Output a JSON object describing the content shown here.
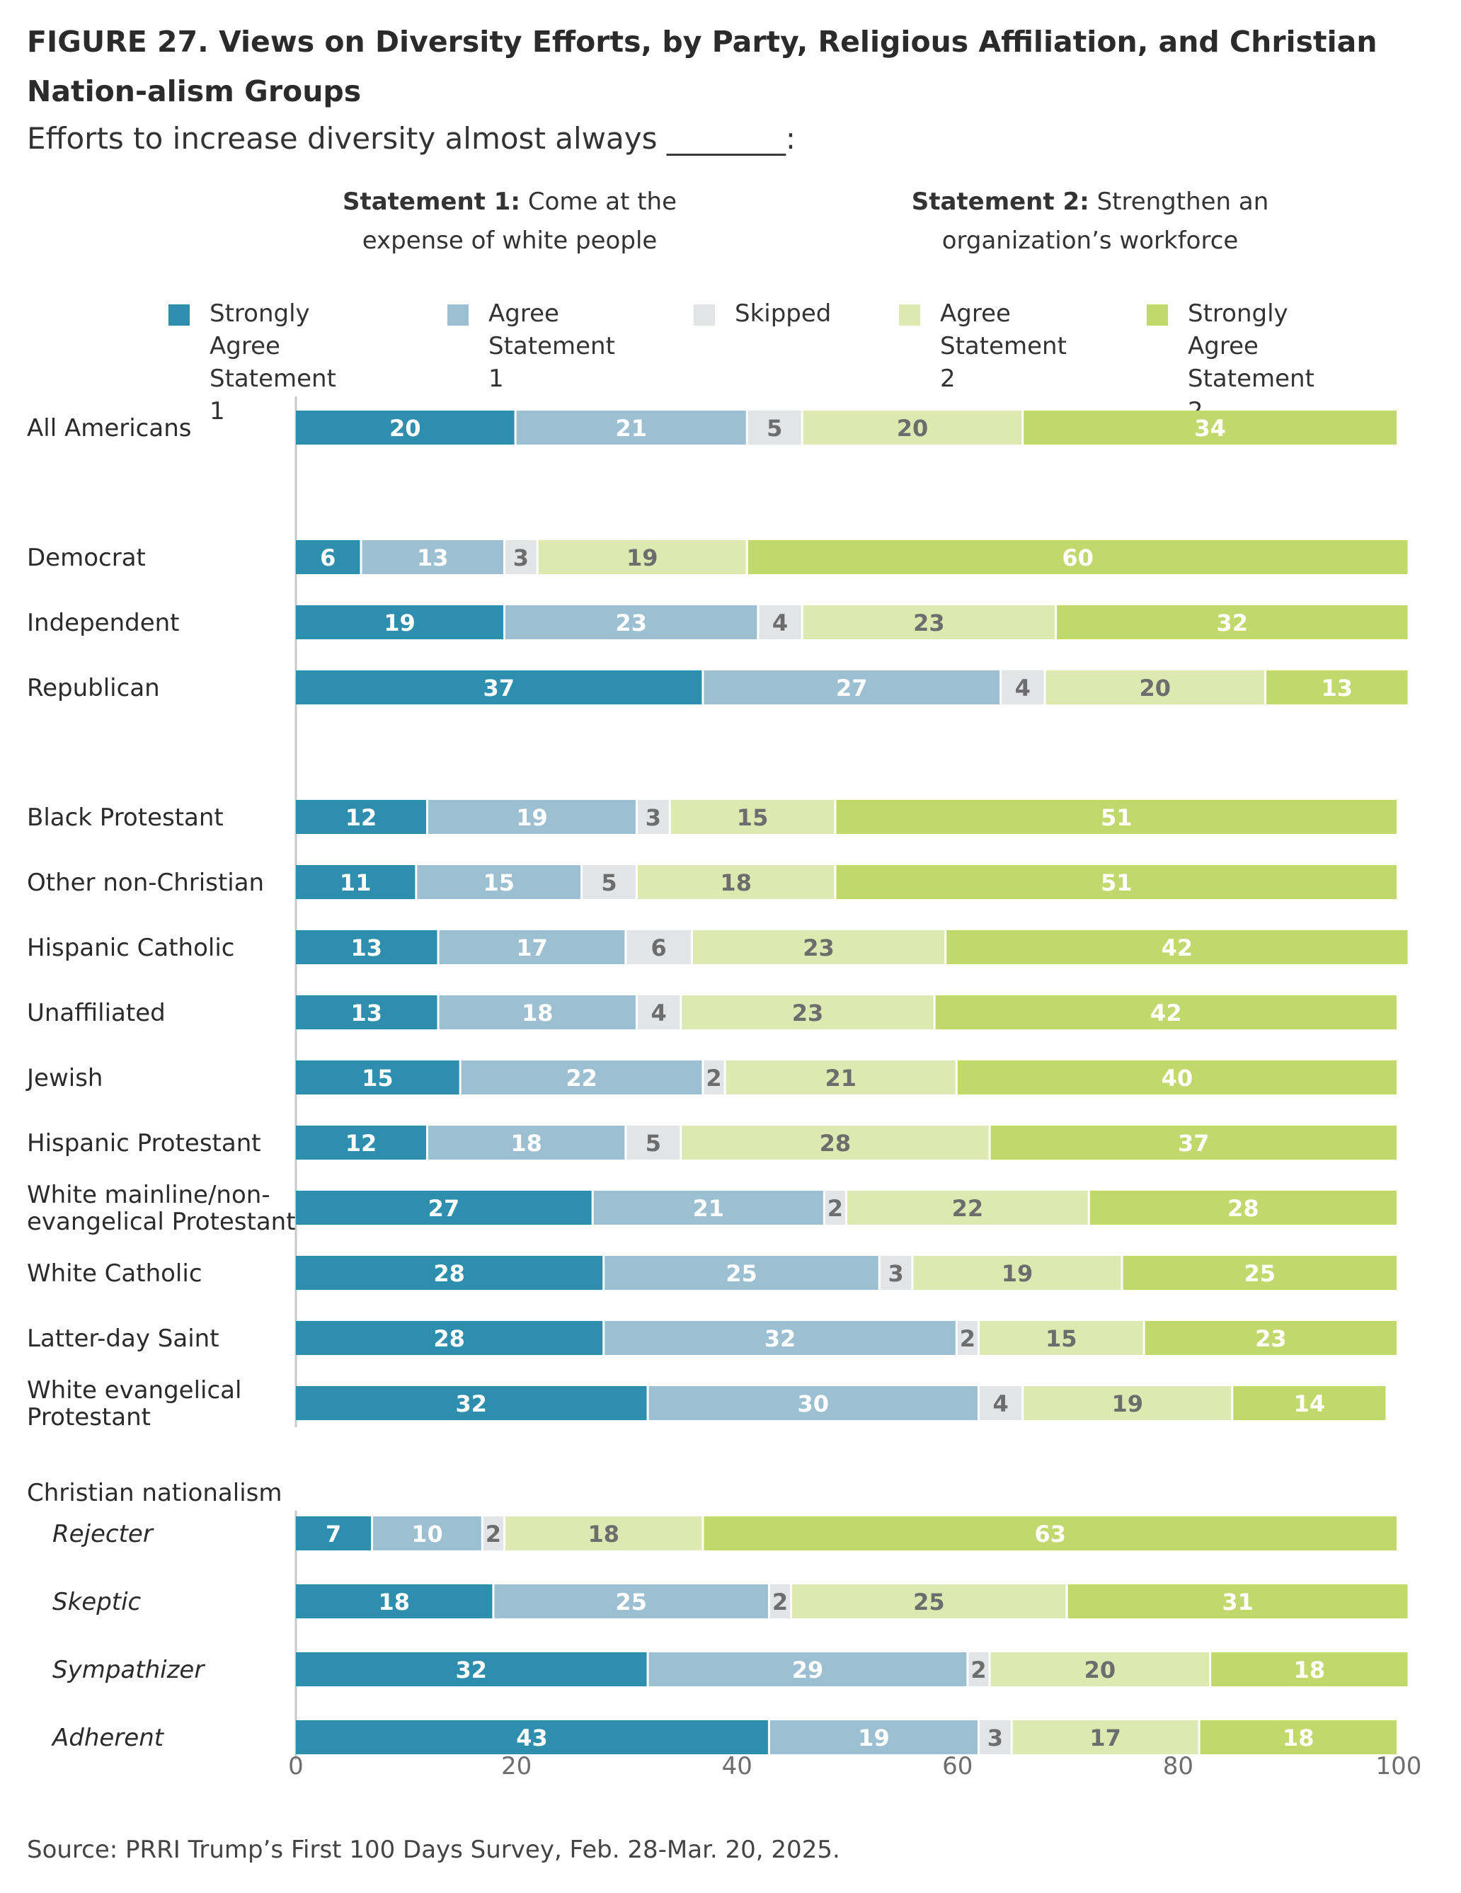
{
  "title": "FIGURE 27.  Views on Diversity Efforts, by Party, Religious Affiliation, and Christian Nation-alism Groups",
  "subtitle": "Efforts to increase diversity almost always ________:",
  "statement1": {
    "bold": "Statement 1:",
    "text": "Come at the expense of white people"
  },
  "statement2": {
    "bold": "Statement 2:",
    "text": "Strengthen an organization’s workforce"
  },
  "legend": [
    {
      "label": "Strongly Agree\nStatement 1",
      "color": "#2e8eae"
    },
    {
      "label": "Agree\nStatement 1",
      "color": "#9dbfd2"
    },
    {
      "label": "Skipped",
      "color": "#e3e4e6"
    },
    {
      "label": "Agree\nStatement 2",
      "color": "#dde9b0"
    },
    {
      "label": "Strongly Agree\nStatement 2",
      "color": "#c1d96c"
    }
  ],
  "source": "Source: PRRI Trump’s First 100 Days Survey, Feb. 28-Mar. 20, 2025.",
  "chart_data": {
    "type": "bar",
    "orientation": "horizontal",
    "stacked": true,
    "xlim": [
      0,
      100
    ],
    "xticks": [
      0,
      20,
      40,
      60,
      80,
      100
    ],
    "grid": false,
    "legend_position": "top",
    "series": [
      {
        "name": "Strongly Agree Statement 1",
        "color": "#2e8eae",
        "label_color": "#ffffff"
      },
      {
        "name": "Agree Statement 1",
        "color": "#9dbfd2",
        "label_color": "#ffffff"
      },
      {
        "name": "Skipped",
        "color": "#e3e4e6",
        "label_color": "#6d6d6d"
      },
      {
        "name": "Agree Statement 2",
        "color": "#dde9b0",
        "label_color": "#6d6d6d"
      },
      {
        "name": "Strongly Agree Statement 2",
        "color": "#c1d96c",
        "label_color": "#ffffff"
      }
    ],
    "group_header": "Christian nationalism",
    "rows": [
      {
        "label": "All Americans",
        "values": [
          20,
          21,
          5,
          20,
          34
        ]
      },
      {
        "label": "Democrat",
        "values": [
          6,
          13,
          3,
          19,
          60
        ]
      },
      {
        "label": "Independent",
        "values": [
          19,
          23,
          4,
          23,
          32
        ]
      },
      {
        "label": "Republican",
        "values": [
          37,
          27,
          4,
          20,
          13
        ]
      },
      {
        "label": "Black Protestant",
        "values": [
          12,
          19,
          3,
          15,
          51
        ]
      },
      {
        "label": "Other non-Christian",
        "values": [
          11,
          15,
          5,
          18,
          51
        ]
      },
      {
        "label": "Hispanic Catholic",
        "values": [
          13,
          17,
          6,
          23,
          42
        ]
      },
      {
        "label": "Unaffiliated",
        "values": [
          13,
          18,
          4,
          23,
          42
        ]
      },
      {
        "label": "Jewish",
        "values": [
          15,
          22,
          2,
          21,
          40
        ]
      },
      {
        "label": "Hispanic Protestant",
        "values": [
          12,
          18,
          5,
          28,
          37
        ]
      },
      {
        "label": "White mainline/non-\nevangelical Protestant",
        "values": [
          27,
          21,
          2,
          22,
          28
        ]
      },
      {
        "label": "White Catholic",
        "values": [
          28,
          25,
          3,
          19,
          25
        ]
      },
      {
        "label": "Latter-day Saint",
        "values": [
          28,
          32,
          2,
          15,
          23
        ]
      },
      {
        "label": "White evangelical\nProtestant",
        "values": [
          32,
          30,
          4,
          19,
          14
        ]
      },
      {
        "label": "Rejecter",
        "values": [
          7,
          10,
          2,
          18,
          63
        ],
        "italic": true
      },
      {
        "label": "Skeptic",
        "values": [
          18,
          25,
          2,
          25,
          31
        ],
        "italic": true
      },
      {
        "label": "Sympathizer",
        "values": [
          32,
          29,
          2,
          20,
          18
        ],
        "italic": true
      },
      {
        "label": "Adherent",
        "values": [
          43,
          19,
          3,
          17,
          18
        ],
        "italic": true
      }
    ]
  }
}
